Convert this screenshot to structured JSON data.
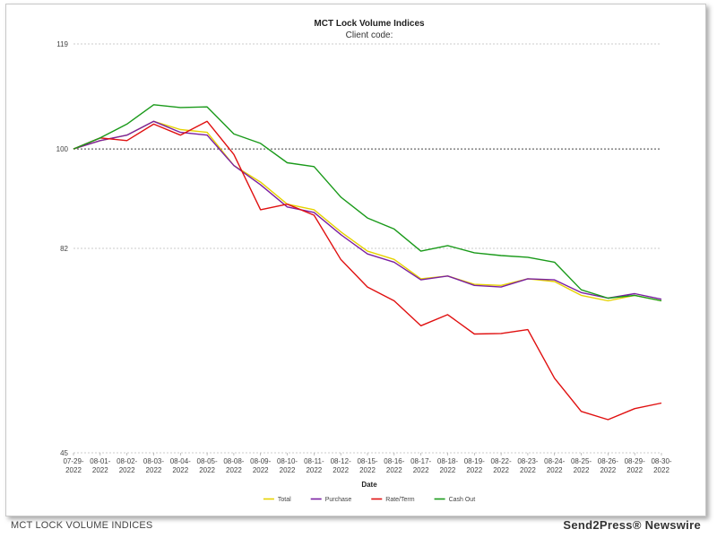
{
  "footer": {
    "caption": "MCT LOCK VOLUME INDICES",
    "brand": "Send2Press® Newswire"
  },
  "colors": {
    "Total": "#e6d200",
    "Purchase": "#7a1fa2",
    "Rate/Term": "#e01010",
    "Cash Out": "#1a9a1a",
    "reference_line": "#444444",
    "grid": "#bbbbbb"
  },
  "chart_data": {
    "type": "line",
    "title": "MCT Lock Volume Indices",
    "subtitle": "Client code:",
    "xlabel": "Date",
    "ylabel": "",
    "ylim": [
      45,
      119
    ],
    "yticks": [
      119,
      100,
      82,
      45
    ],
    "reference_line": 100,
    "legend_position": "bottom-center",
    "categories": [
      [
        "07-29-",
        "2022"
      ],
      [
        "08-01-",
        "2022"
      ],
      [
        "08-02-",
        "2022"
      ],
      [
        "08-03-",
        "2022"
      ],
      [
        "08-04-",
        "2022"
      ],
      [
        "08-05-",
        "2022"
      ],
      [
        "08-08-",
        "2022"
      ],
      [
        "08-09-",
        "2022"
      ],
      [
        "08-10-",
        "2022"
      ],
      [
        "08-11-",
        "2022"
      ],
      [
        "08-12-",
        "2022"
      ],
      [
        "08-15-",
        "2022"
      ],
      [
        "08-16-",
        "2022"
      ],
      [
        "08-17-",
        "2022"
      ],
      [
        "08-18-",
        "2022"
      ],
      [
        "08-19-",
        "2022"
      ],
      [
        "08-22-",
        "2022"
      ],
      [
        "08-23-",
        "2022"
      ],
      [
        "08-24-",
        "2022"
      ],
      [
        "08-25-",
        "2022"
      ],
      [
        "08-26-",
        "2022"
      ],
      [
        "08-29-",
        "2022"
      ],
      [
        "08-30-",
        "2022"
      ]
    ],
    "series": [
      {
        "name": "Total",
        "values": [
          100,
          101.5,
          102.5,
          105,
          103.5,
          103,
          97,
          94,
          90,
          89,
          85,
          81.5,
          80,
          76.5,
          77,
          75.5,
          75.3,
          76.5,
          76,
          73.5,
          72.5,
          73.5,
          72.5
        ]
      },
      {
        "name": "Purchase",
        "values": [
          100,
          101.5,
          102.5,
          105,
          103,
          102.5,
          97,
          93.5,
          89.5,
          88.5,
          84.5,
          81,
          79.5,
          76.3,
          77,
          75.3,
          75,
          76.5,
          76.3,
          74,
          73,
          73.8,
          72.8
        ]
      },
      {
        "name": "Rate/Term",
        "values": [
          100,
          102,
          101.5,
          104.5,
          102.5,
          105,
          99,
          89,
          90,
          88,
          80,
          75,
          72.5,
          68,
          70,
          66.5,
          66.6,
          67.3,
          58.5,
          52.5,
          51,
          53,
          54
        ]
      },
      {
        "name": "Cash Out",
        "values": [
          100,
          102,
          104.5,
          108,
          107.5,
          107.6,
          102.7,
          101,
          97.5,
          96.8,
          91.3,
          87.5,
          85.5,
          81.5,
          82.5,
          81.2,
          80.7,
          80.4,
          79.5,
          74.5,
          73,
          73.5,
          72.5
        ]
      }
    ]
  }
}
